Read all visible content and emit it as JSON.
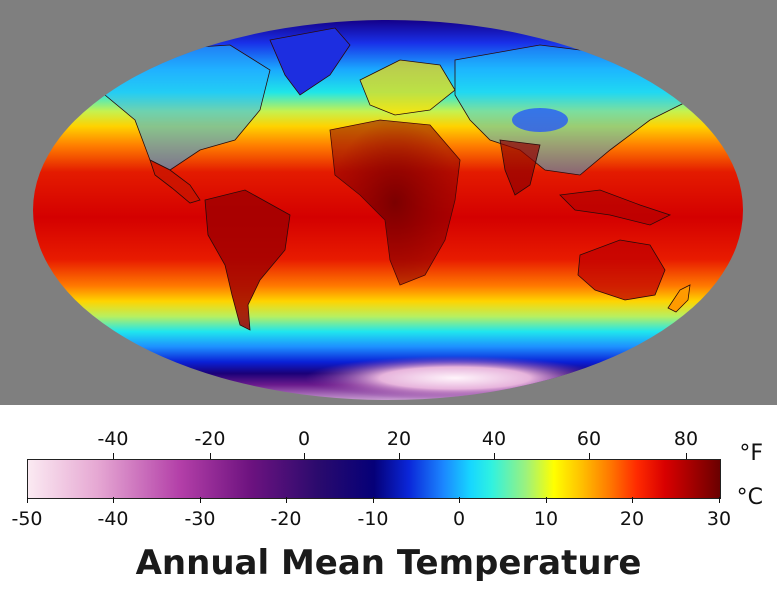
{
  "map": {
    "colors": {
      "frame": "#7f7f7f",
      "coastline": "#2b0a0a"
    }
  },
  "legend": {
    "fahrenheit_ticks": [
      "-40",
      "-20",
      "0",
      "20",
      "40",
      "60",
      "80"
    ],
    "celsius_ticks": [
      "-50",
      "-40",
      "-30",
      "-20",
      "-10",
      "0",
      "10",
      "20",
      "30"
    ],
    "unit_f": "°F",
    "unit_c": "°C",
    "title": "Annual Mean Temperature",
    "colors": [
      "#fbeaf2",
      "#b33fa8",
      "#2a0a6d",
      "#050078",
      "#1b86ff",
      "#30f2e0",
      "#ffff00",
      "#ff7a00",
      "#d90000",
      "#6a0000"
    ]
  }
}
